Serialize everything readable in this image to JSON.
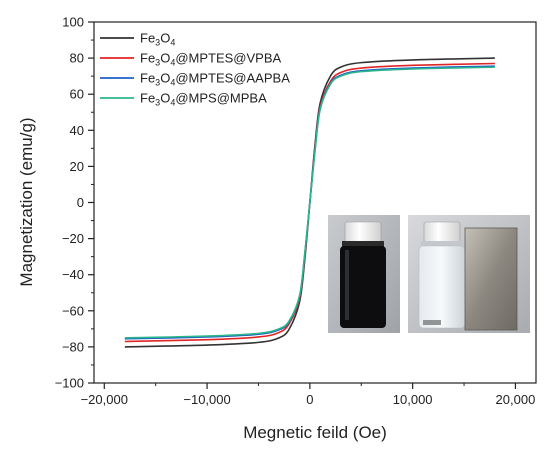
{
  "chart_data": {
    "type": "line",
    "xlabel": "Megnetic feild (Oe)",
    "ylabel": "Magnetization (emu/g)",
    "xlim": [
      -21000,
      22000
    ],
    "ylim": [
      -100,
      100
    ],
    "xticks": [
      -20000,
      -10000,
      0,
      10000,
      20000
    ],
    "xtick_labels": [
      "−20,000",
      "−10,000",
      "0",
      "10,000",
      "20,000"
    ],
    "yticks": [
      -100,
      -80,
      -60,
      -40,
      -20,
      0,
      20,
      40,
      60,
      80,
      100
    ],
    "ytick_labels": [
      "−100",
      "−80",
      "−60",
      "−40",
      "−20",
      "0",
      "20",
      "40",
      "60",
      "80",
      "100"
    ],
    "legend_position": "top-left",
    "series": [
      {
        "name": "Fe3O4",
        "legend": {
          "parts": [
            {
              "t": "Fe"
            },
            {
              "t": "3",
              "sub": true
            },
            {
              "t": "O"
            },
            {
              "t": "4",
              "sub": true
            }
          ]
        },
        "color": "#333333",
        "x": [
          -18000,
          -10000,
          -5000,
          -3000,
          -2000,
          -1000,
          -500,
          0,
          500,
          1000,
          2000,
          3000,
          5000,
          10000,
          18000
        ],
        "y": [
          -80,
          -79,
          -77.5,
          -75,
          -70,
          -55,
          -32,
          0,
          32,
          55,
          70,
          75,
          77.5,
          79,
          80
        ]
      },
      {
        "name": "Fe3O4@MPTES@VPBA",
        "legend": {
          "parts": [
            {
              "t": "Fe"
            },
            {
              "t": "3",
              "sub": true
            },
            {
              "t": "O"
            },
            {
              "t": "4",
              "sub": true
            },
            {
              "t": "@MPTES@VPBA"
            }
          ]
        },
        "color": "#e02525",
        "x": [
          -18000,
          -10000,
          -5000,
          -3000,
          -2000,
          -1000,
          -500,
          0,
          500,
          1000,
          2000,
          3000,
          5000,
          10000,
          18000
        ],
        "y": [
          -77,
          -76,
          -74.5,
          -72,
          -67,
          -53,
          -30,
          0,
          30,
          53,
          67,
          72,
          74.5,
          76,
          77
        ]
      },
      {
        "name": "Fe3O4@MPTES@AAPBA",
        "legend": {
          "parts": [
            {
              "t": "Fe"
            },
            {
              "t": "3",
              "sub": true
            },
            {
              "t": "O"
            },
            {
              "t": "4",
              "sub": true
            },
            {
              "t": "@MPTES@AAPBA"
            }
          ]
        },
        "color": "#1f5fc8",
        "x": [
          -18000,
          -10000,
          -5000,
          -3000,
          -2000,
          -1000,
          -500,
          0,
          500,
          1000,
          2000,
          3000,
          5000,
          10000,
          18000
        ],
        "y": [
          -75.5,
          -74.5,
          -73,
          -70.5,
          -66,
          -52,
          -29,
          0,
          29,
          52,
          66,
          70.5,
          73,
          74.5,
          75.5
        ]
      },
      {
        "name": "Fe3O4@MPS@MPBA",
        "legend": {
          "parts": [
            {
              "t": "Fe"
            },
            {
              "t": "3",
              "sub": true
            },
            {
              "t": "O"
            },
            {
              "t": "4",
              "sub": true
            },
            {
              "t": "@MPS@MPBA"
            }
          ]
        },
        "color": "#2bb58a",
        "x": [
          -18000,
          -10000,
          -5000,
          -3000,
          -2000,
          -1000,
          -500,
          0,
          500,
          1000,
          2000,
          3000,
          5000,
          10000,
          18000
        ],
        "y": [
          -75,
          -74,
          -72.5,
          -70,
          -65.5,
          -51.5,
          -28.5,
          0,
          28.5,
          51.5,
          65.5,
          70,
          72.5,
          74,
          75
        ]
      }
    ],
    "inset": {
      "content": "photo of two vials (black magnetic suspension, then clear liquid next to a magnet)"
    }
  }
}
